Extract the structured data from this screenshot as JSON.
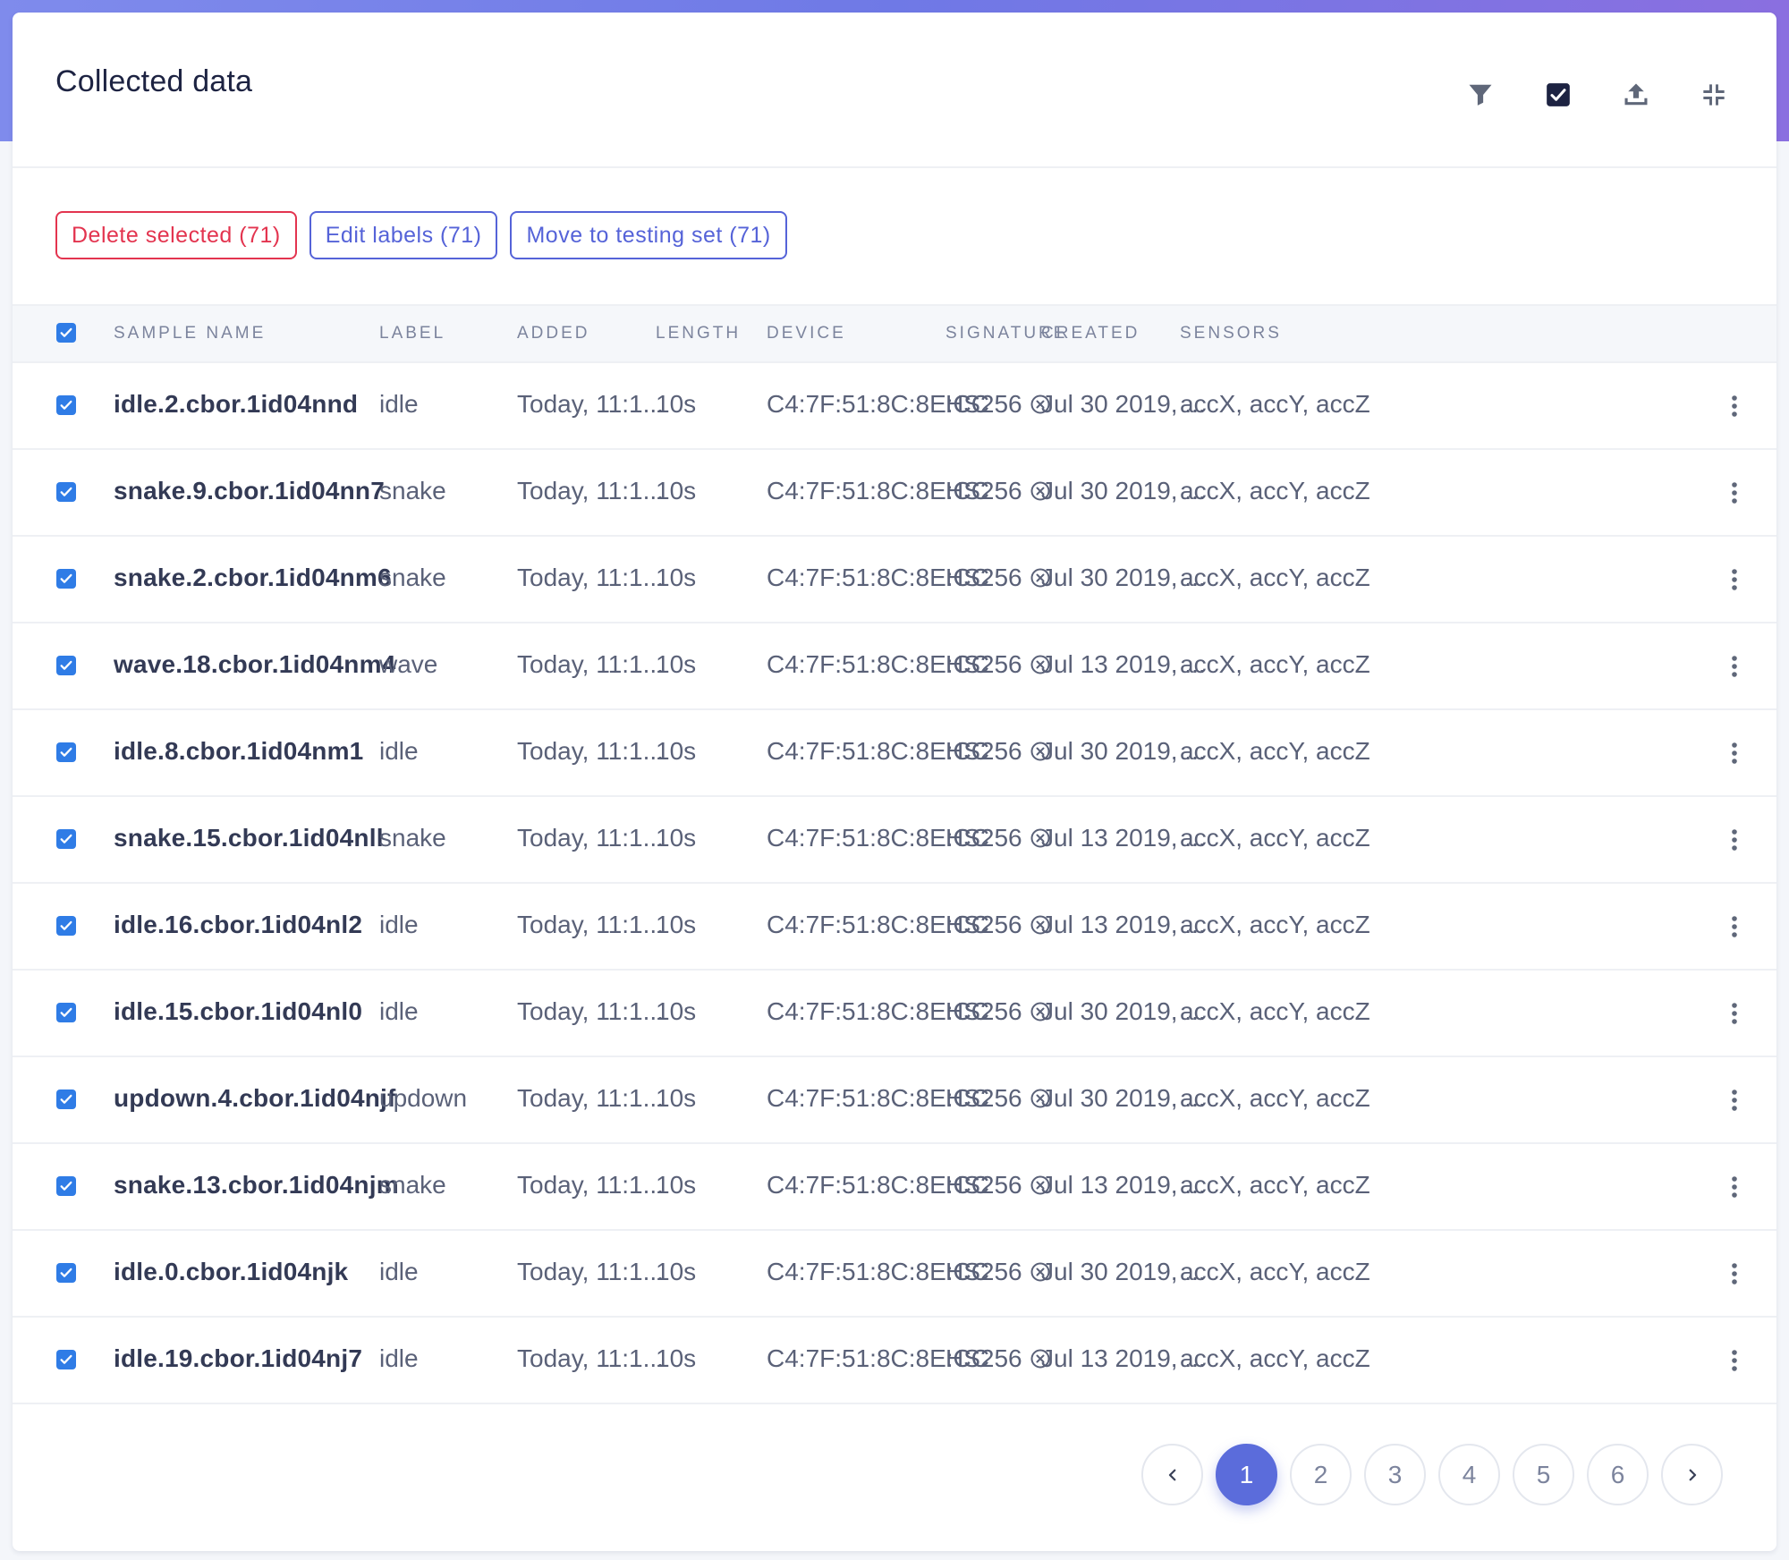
{
  "card": {
    "title": "Collected data"
  },
  "toolbar_icons": [
    "filter-icon",
    "select-checkbox-icon",
    "upload-icon",
    "collapse-icon"
  ],
  "actions": {
    "delete_label": "Delete selected (71)",
    "edit_labels_label": "Edit labels (71)",
    "move_label": "Move to testing set (71)"
  },
  "columns": {
    "sample_name": "SAMPLE NAME",
    "label": "LABEL",
    "added": "ADDED",
    "length": "LENGTH",
    "device": "DEVICE",
    "signature": "SIGNATURE",
    "created": "CREATED",
    "sensors": "SENSORS"
  },
  "rows": [
    {
      "name": "idle.2.cbor.1id04nnd",
      "label": "idle",
      "added": "Today, 11:1...",
      "length": "10s",
      "device": "C4:7F:51:8C:8E:CC",
      "signature": "HS256",
      "created": "Jul 30 2019, ...",
      "sensors": "accX, accY, accZ"
    },
    {
      "name": "snake.9.cbor.1id04nn7",
      "label": "snake",
      "added": "Today, 11:1...",
      "length": "10s",
      "device": "C4:7F:51:8C:8E:CC",
      "signature": "HS256",
      "created": "Jul 30 2019, ...",
      "sensors": "accX, accY, accZ"
    },
    {
      "name": "snake.2.cbor.1id04nm6",
      "label": "snake",
      "added": "Today, 11:1...",
      "length": "10s",
      "device": "C4:7F:51:8C:8E:CC",
      "signature": "HS256",
      "created": "Jul 30 2019, ...",
      "sensors": "accX, accY, accZ"
    },
    {
      "name": "wave.18.cbor.1id04nm4",
      "label": "wave",
      "added": "Today, 11:1...",
      "length": "10s",
      "device": "C4:7F:51:8C:8E:CC",
      "signature": "HS256",
      "created": "Jul 13 2019, ...",
      "sensors": "accX, accY, accZ"
    },
    {
      "name": "idle.8.cbor.1id04nm1",
      "label": "idle",
      "added": "Today, 11:1...",
      "length": "10s",
      "device": "C4:7F:51:8C:8E:CC",
      "signature": "HS256",
      "created": "Jul 30 2019, ...",
      "sensors": "accX, accY, accZ"
    },
    {
      "name": "snake.15.cbor.1id04nll",
      "label": "snake",
      "added": "Today, 11:1...",
      "length": "10s",
      "device": "C4:7F:51:8C:8E:CC",
      "signature": "HS256",
      "created": "Jul 13 2019, ...",
      "sensors": "accX, accY, accZ"
    },
    {
      "name": "idle.16.cbor.1id04nl2",
      "label": "idle",
      "added": "Today, 11:1...",
      "length": "10s",
      "device": "C4:7F:51:8C:8E:CC",
      "signature": "HS256",
      "created": "Jul 13 2019, ...",
      "sensors": "accX, accY, accZ"
    },
    {
      "name": "idle.15.cbor.1id04nl0",
      "label": "idle",
      "added": "Today, 11:1...",
      "length": "10s",
      "device": "C4:7F:51:8C:8E:CC",
      "signature": "HS256",
      "created": "Jul 30 2019, ...",
      "sensors": "accX, accY, accZ"
    },
    {
      "name": "updown.4.cbor.1id04njf",
      "label": "updown",
      "added": "Today, 11:1...",
      "length": "10s",
      "device": "C4:7F:51:8C:8E:CC",
      "signature": "HS256",
      "created": "Jul 30 2019, ...",
      "sensors": "accX, accY, accZ"
    },
    {
      "name": "snake.13.cbor.1id04njm",
      "label": "snake",
      "added": "Today, 11:1...",
      "length": "10s",
      "device": "C4:7F:51:8C:8E:CC",
      "signature": "HS256",
      "created": "Jul 13 2019, ...",
      "sensors": "accX, accY, accZ"
    },
    {
      "name": "idle.0.cbor.1id04njk",
      "label": "idle",
      "added": "Today, 11:1...",
      "length": "10s",
      "device": "C4:7F:51:8C:8E:CC",
      "signature": "HS256",
      "created": "Jul 30 2019, ...",
      "sensors": "accX, accY, accZ"
    },
    {
      "name": "idle.19.cbor.1id04nj7",
      "label": "idle",
      "added": "Today, 11:1...",
      "length": "10s",
      "device": "C4:7F:51:8C:8E:CC",
      "signature": "HS256",
      "created": "Jul 13 2019, ...",
      "sensors": "accX, accY, accZ"
    }
  ],
  "pagination": {
    "pages": [
      "1",
      "2",
      "3",
      "4",
      "5",
      "6"
    ],
    "current": "1"
  },
  "colors": {
    "accent": "#5b6cdb",
    "danger": "#e3344f",
    "checkbox": "#2f7ce6"
  }
}
